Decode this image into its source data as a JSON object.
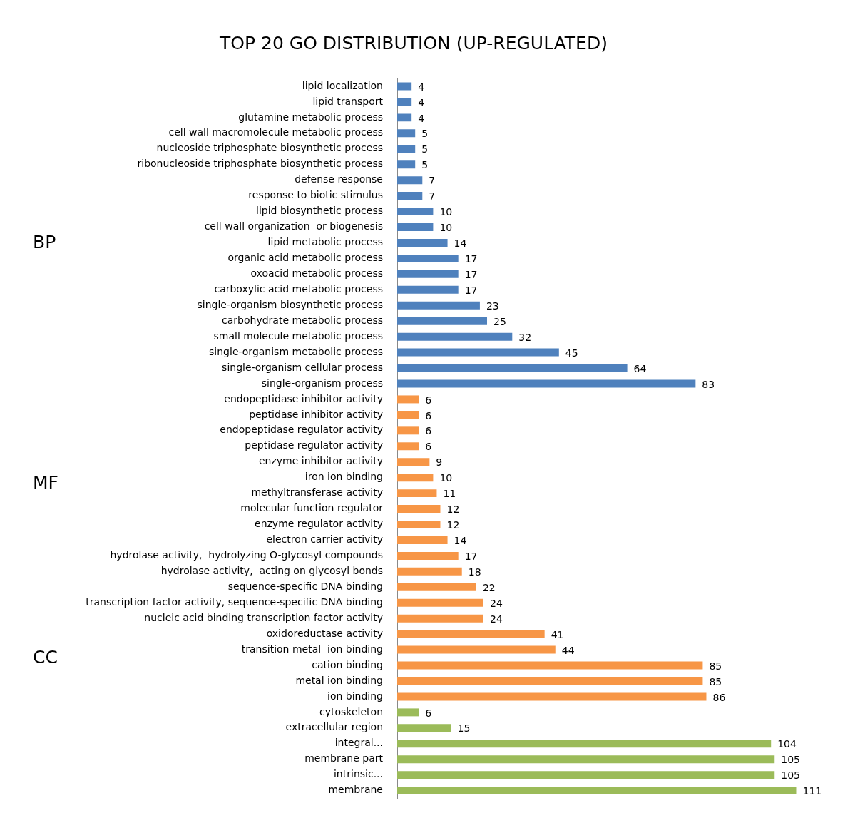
{
  "chart_data": {
    "type": "bar",
    "orientation": "horizontal",
    "title": "TOP 20 GO DISTRIBUTION (UP-REGULATED)",
    "annotations": [
      "BP",
      "MF",
      "CC"
    ],
    "categories": [
      "lipid localization",
      "lipid transport",
      "glutamine metabolic process",
      "cell wall macromolecule metabolic process",
      "nucleoside triphosphate biosynthetic process",
      "ribonucleoside triphosphate biosynthetic process",
      "defense response",
      "response to biotic stimulus",
      "lipid biosynthetic process",
      "cell wall organization  or biogenesis",
      "lipid metabolic process",
      "organic acid metabolic process",
      "oxoacid metabolic process",
      "carboxylic acid metabolic process",
      "single-organism biosynthetic process",
      "carbohydrate metabolic process",
      "small molecule metabolic process",
      "single-organism metabolic process",
      "single-organism cellular process",
      "single-organism process",
      "endopeptidase inhibitor activity",
      "peptidase inhibitor activity",
      "endopeptidase regulator activity",
      "peptidase regulator activity",
      "enzyme inhibitor activity",
      "iron ion binding",
      "methyltransferase activity",
      "molecular function regulator",
      "enzyme regulator activity",
      "electron carrier activity",
      "hydrolase activity,  hydrolyzing O-glycosyl compounds",
      "hydrolase activity,  acting on glycosyl bonds",
      "sequence-specific DNA binding",
      "transcription factor activity, sequence-specific DNA binding",
      "nucleic acid binding transcription factor activity",
      "oxidoreductase activity",
      "transition metal  ion binding",
      "cation binding",
      "metal ion binding",
      "ion binding",
      "cytoskeleton",
      "extracellular region",
      "integral...",
      "membrane part",
      "intrinsic...",
      "membrane"
    ],
    "values": [
      4,
      4,
      4,
      5,
      5,
      5,
      7,
      7,
      10,
      10,
      14,
      17,
      17,
      17,
      23,
      25,
      32,
      45,
      64,
      83,
      6,
      6,
      6,
      6,
      9,
      10,
      11,
      12,
      12,
      14,
      17,
      18,
      22,
      24,
      24,
      41,
      44,
      85,
      85,
      86,
      6,
      15,
      104,
      105,
      105,
      111
    ],
    "colors": [
      "#4f81bd",
      "#4f81bd",
      "#4f81bd",
      "#4f81bd",
      "#4f81bd",
      "#4f81bd",
      "#4f81bd",
      "#4f81bd",
      "#4f81bd",
      "#4f81bd",
      "#4f81bd",
      "#4f81bd",
      "#4f81bd",
      "#4f81bd",
      "#4f81bd",
      "#4f81bd",
      "#4f81bd",
      "#4f81bd",
      "#4f81bd",
      "#4f81bd",
      "#f79646",
      "#f79646",
      "#f79646",
      "#f79646",
      "#f79646",
      "#f79646",
      "#f79646",
      "#f79646",
      "#f79646",
      "#f79646",
      "#f79646",
      "#f79646",
      "#f79646",
      "#f79646",
      "#f79646",
      "#f79646",
      "#f79646",
      "#f79646",
      "#f79646",
      "#f79646",
      "#9bbb59",
      "#9bbb59",
      "#9bbb59",
      "#9bbb59",
      "#9bbb59",
      "#9bbb59"
    ],
    "data_labels": true,
    "legend": false
  }
}
